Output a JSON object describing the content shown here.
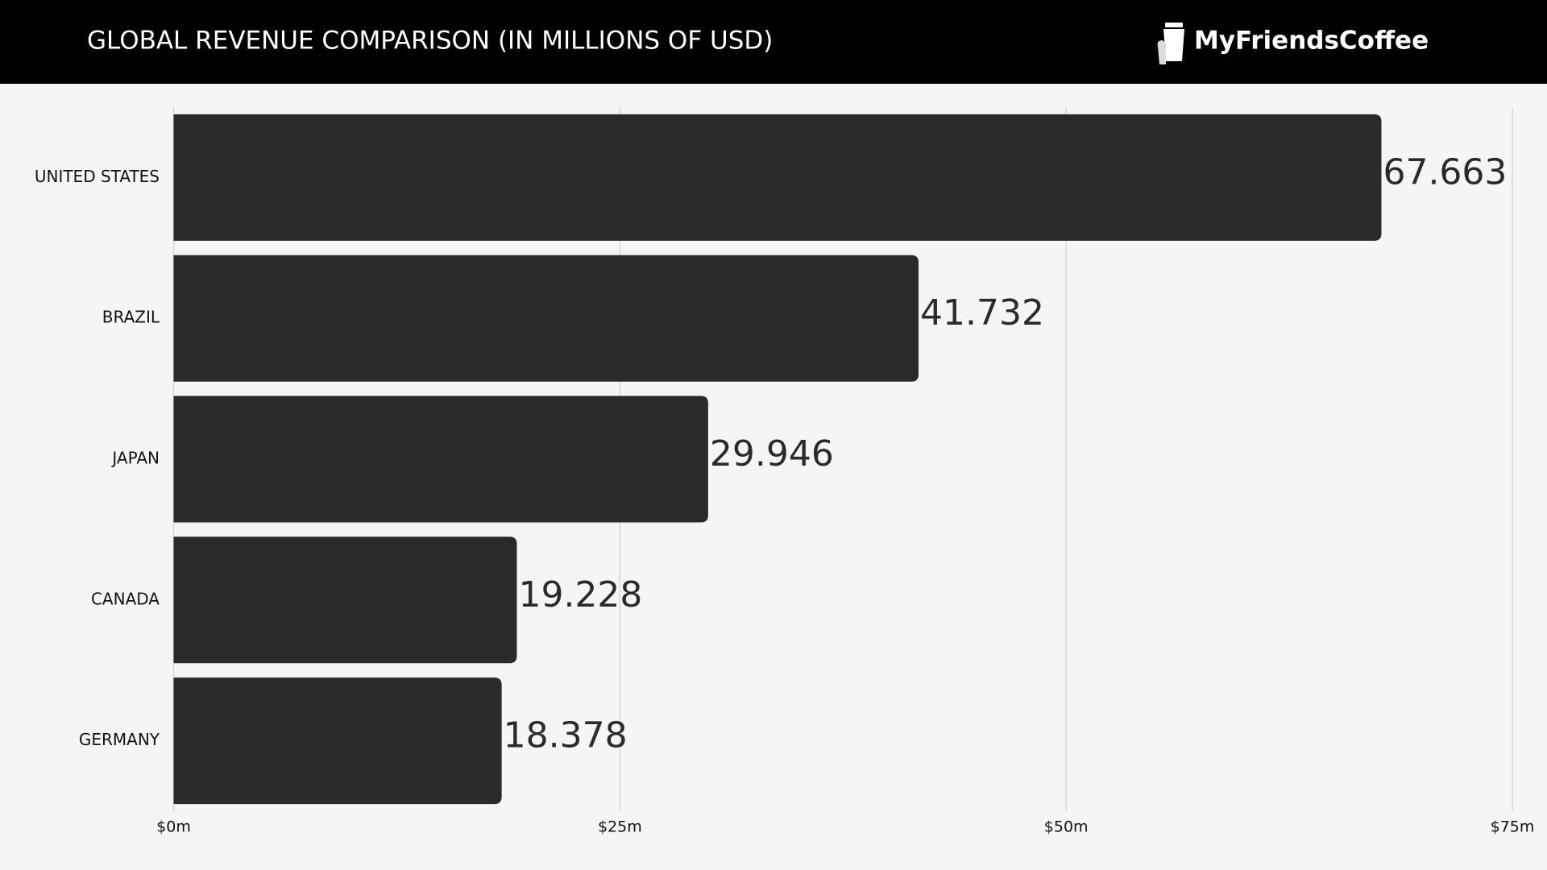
{
  "brand": "MyFriendsCoffee",
  "chart_data": {
    "type": "hbar",
    "title": "GLOBAL REVENUE COMPARISON (IN MILLIONS OF USD)",
    "categories": [
      "UNITED STATES",
      "BRAZIL",
      "JAPAN",
      "CANADA",
      "GERMANY"
    ],
    "values": [
      67.663,
      41.732,
      29.946,
      19.228,
      18.378
    ],
    "color": "#2a2a2a",
    "xlim": [
      0,
      75
    ],
    "xticks": [
      {
        "value": 0,
        "label": "$0m"
      },
      {
        "value": 25,
        "label": "$25m"
      },
      {
        "value": 50,
        "label": "$50m"
      },
      {
        "value": 75,
        "label": "$75m"
      }
    ],
    "grid": true
  }
}
